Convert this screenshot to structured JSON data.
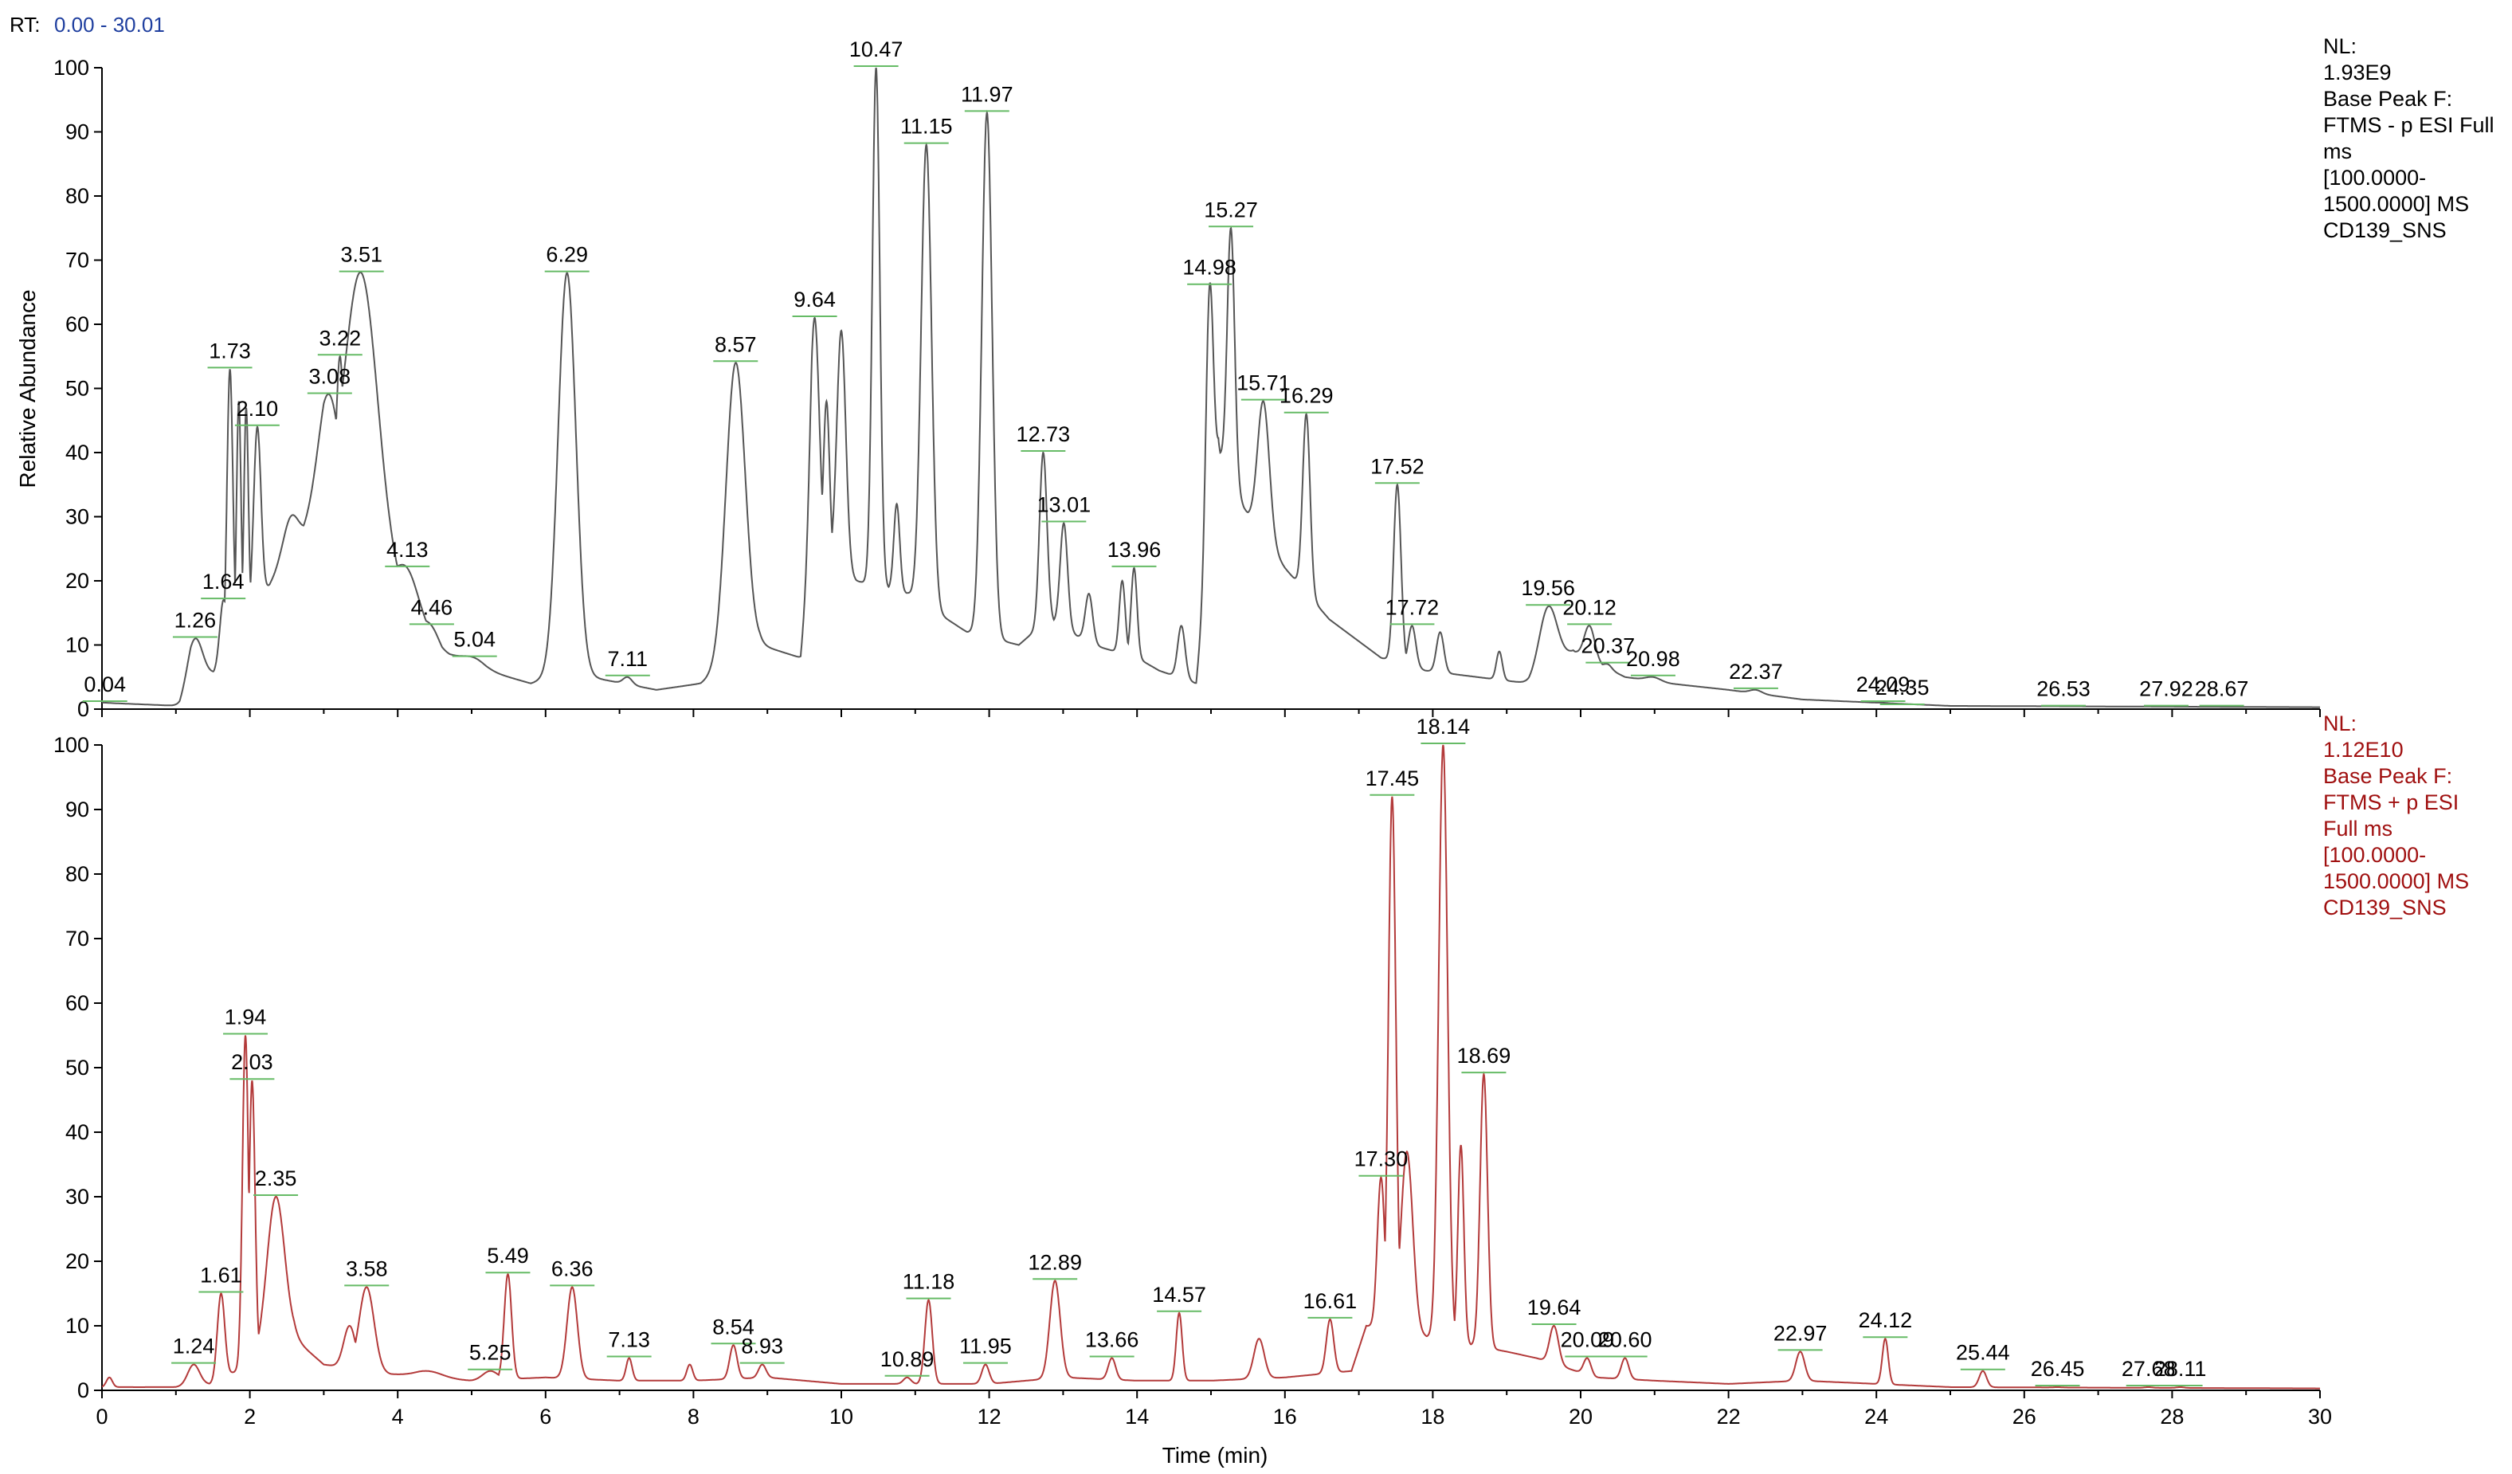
{
  "header": {
    "rt_label": "RT:",
    "rt_range": "0.00 - 30.01"
  },
  "colors": {
    "panel_1": "#555555",
    "panel_2": "#b33a3a",
    "panel_2_text": "#a01010",
    "rt_range_text": "#1f3f9f",
    "label_tick": "#66bb66"
  },
  "chart_data": [
    {
      "type": "line",
      "xlabel": "Time (min)",
      "ylabel": "Relative Abundance",
      "xlim": [
        0,
        30
      ],
      "ylim": [
        0,
        100
      ],
      "x_ticks": [
        0,
        2,
        4,
        6,
        8,
        10,
        12,
        14,
        16,
        18,
        20,
        22,
        24,
        26,
        28,
        30
      ],
      "y_ticks": [
        0,
        10,
        20,
        30,
        40,
        50,
        60,
        70,
        80,
        90,
        100
      ],
      "info": [
        "NL:",
        "1.93E9",
        "Base Peak F:",
        "FTMS - p ESI Full",
        "ms",
        "[100.0000-",
        "1500.0000]  MS",
        "CD139_SNS"
      ],
      "peaks": [
        {
          "label": "0.04",
          "x": 0.04,
          "y": 1,
          "w": 0.05
        },
        {
          "label": "1.26",
          "x": 1.26,
          "y": 11,
          "w": 0.1
        },
        {
          "label": "1.64",
          "x": 1.64,
          "y": 17,
          "w": 0.05
        },
        {
          "label": "1.73",
          "x": 1.73,
          "y": 53,
          "w": 0.04
        },
        {
          "label": "",
          "x": 1.85,
          "y": 48,
          "w": 0.03
        },
        {
          "label": "",
          "x": 1.95,
          "y": 47,
          "w": 0.03
        },
        {
          "label": "2.10",
          "x": 2.1,
          "y": 44,
          "w": 0.05
        },
        {
          "label": "",
          "x": 2.55,
          "y": 30,
          "w": 0.1
        },
        {
          "label": "3.08",
          "x": 3.08,
          "y": 49,
          "w": 0.15
        },
        {
          "label": "3.22",
          "x": 3.22,
          "y": 55,
          "w": 0.05
        },
        {
          "label": "3.51",
          "x": 3.51,
          "y": 68,
          "w": 0.22
        },
        {
          "label": "4.13",
          "x": 4.13,
          "y": 22,
          "w": 0.15
        },
        {
          "label": "4.46",
          "x": 4.46,
          "y": 13,
          "w": 0.1
        },
        {
          "label": "5.04",
          "x": 5.04,
          "y": 8,
          "w": 0.15
        },
        {
          "label": "6.29",
          "x": 6.29,
          "y": 68,
          "w": 0.12
        },
        {
          "label": "7.11",
          "x": 7.11,
          "y": 5,
          "w": 0.06
        },
        {
          "label": "8.57",
          "x": 8.57,
          "y": 54,
          "w": 0.13
        },
        {
          "label": "9.64",
          "x": 9.64,
          "y": 61,
          "w": 0.06
        },
        {
          "label": "",
          "x": 9.8,
          "y": 48,
          "w": 0.04
        },
        {
          "label": "",
          "x": 10.0,
          "y": 59,
          "w": 0.06
        },
        {
          "label": "10.47",
          "x": 10.47,
          "y": 100,
          "w": 0.05
        },
        {
          "label": "",
          "x": 10.75,
          "y": 32,
          "w": 0.04
        },
        {
          "label": "11.15",
          "x": 11.15,
          "y": 88,
          "w": 0.07
        },
        {
          "label": "11.97",
          "x": 11.97,
          "y": 93,
          "w": 0.07
        },
        {
          "label": "12.73",
          "x": 12.73,
          "y": 40,
          "w": 0.05
        },
        {
          "label": "13.01",
          "x": 13.01,
          "y": 29,
          "w": 0.05
        },
        {
          "label": "",
          "x": 13.35,
          "y": 18,
          "w": 0.05
        },
        {
          "label": "",
          "x": 13.8,
          "y": 20,
          "w": 0.04
        },
        {
          "label": "13.96",
          "x": 13.96,
          "y": 22,
          "w": 0.04
        },
        {
          "label": "",
          "x": 14.6,
          "y": 13,
          "w": 0.05
        },
        {
          "label": "14.98",
          "x": 14.98,
          "y": 66,
          "w": 0.05
        },
        {
          "label": "15.27",
          "x": 15.27,
          "y": 75,
          "w": 0.05
        },
        {
          "label": "15.71",
          "x": 15.71,
          "y": 48,
          "w": 0.08
        },
        {
          "label": "16.29",
          "x": 16.29,
          "y": 46,
          "w": 0.05
        },
        {
          "label": "17.52",
          "x": 17.52,
          "y": 35,
          "w": 0.05
        },
        {
          "label": "17.72",
          "x": 17.72,
          "y": 13,
          "w": 0.05
        },
        {
          "label": "",
          "x": 18.1,
          "y": 12,
          "w": 0.05
        },
        {
          "label": "",
          "x": 18.9,
          "y": 9,
          "w": 0.04
        },
        {
          "label": "19.56",
          "x": 19.56,
          "y": 16,
          "w": 0.12
        },
        {
          "label": "20.12",
          "x": 20.12,
          "y": 13,
          "w": 0.07
        },
        {
          "label": "20.37",
          "x": 20.37,
          "y": 7,
          "w": 0.05
        },
        {
          "label": "20.98",
          "x": 20.98,
          "y": 5,
          "w": 0.1
        },
        {
          "label": "22.37",
          "x": 22.37,
          "y": 3,
          "w": 0.08
        },
        {
          "label": "24.09",
          "x": 24.09,
          "y": 1,
          "w": 0.05
        },
        {
          "label": "24.35",
          "x": 24.35,
          "y": 0.5,
          "w": 0.05
        },
        {
          "label": "26.53",
          "x": 26.53,
          "y": 0.3,
          "w": 0.05
        },
        {
          "label": "27.92",
          "x": 27.92,
          "y": 0.3,
          "w": 0.05
        },
        {
          "label": "28.67",
          "x": 28.67,
          "y": 0.3,
          "w": 0.05
        }
      ],
      "baseline": [
        [
          0,
          1
        ],
        [
          1.05,
          0.5
        ],
        [
          1.2,
          4
        ],
        [
          1.6,
          6
        ],
        [
          2.4,
          22
        ],
        [
          3.0,
          32
        ],
        [
          3.9,
          20
        ],
        [
          4.6,
          9
        ],
        [
          5.2,
          6
        ],
        [
          5.8,
          4
        ],
        [
          6.1,
          5
        ],
        [
          6.6,
          5
        ],
        [
          7.5,
          3
        ],
        [
          8.1,
          4
        ],
        [
          8.9,
          10
        ],
        [
          9.45,
          8
        ],
        [
          9.6,
          26
        ],
        [
          10.2,
          20
        ],
        [
          10.9,
          18
        ],
        [
          11.7,
          12
        ],
        [
          12.4,
          10
        ],
        [
          12.8,
          14
        ],
        [
          13.4,
          10
        ],
        [
          14.0,
          8
        ],
        [
          14.3,
          6
        ],
        [
          14.8,
          4
        ],
        [
          15.1,
          40
        ],
        [
          15.5,
          30
        ],
        [
          16.0,
          22
        ],
        [
          16.6,
          14
        ],
        [
          17.3,
          8
        ],
        [
          17.9,
          6
        ],
        [
          18.6,
          5
        ],
        [
          19.3,
          4
        ],
        [
          19.9,
          9
        ],
        [
          20.6,
          5
        ],
        [
          21.2,
          4
        ],
        [
          22.0,
          3
        ],
        [
          23.0,
          1.5
        ],
        [
          24.0,
          1
        ],
        [
          25.0,
          0.5
        ],
        [
          30.0,
          0.3
        ]
      ]
    },
    {
      "type": "line",
      "xlabel": "Time (min)",
      "ylabel": "Relative Abundance",
      "xlim": [
        0,
        30
      ],
      "ylim": [
        0,
        100
      ],
      "x_ticks": [
        0,
        2,
        4,
        6,
        8,
        10,
        12,
        14,
        16,
        18,
        20,
        22,
        24,
        26,
        28,
        30
      ],
      "y_ticks": [
        0,
        10,
        20,
        30,
        40,
        50,
        60,
        70,
        80,
        90,
        100
      ],
      "info": [
        "NL:",
        "1.12E10",
        "Base Peak F:",
        "FTMS + p ESI",
        "Full ms",
        "[100.0000-",
        "1500.0000]  MS",
        "CD139_SNS"
      ],
      "peaks": [
        {
          "label": "",
          "x": 0.1,
          "y": 2,
          "w": 0.04
        },
        {
          "label": "1.24",
          "x": 1.24,
          "y": 4,
          "w": 0.08
        },
        {
          "label": "1.61",
          "x": 1.61,
          "y": 15,
          "w": 0.05
        },
        {
          "label": "1.94",
          "x": 1.94,
          "y": 55,
          "w": 0.04
        },
        {
          "label": "2.03",
          "x": 2.03,
          "y": 48,
          "w": 0.04
        },
        {
          "label": "2.35",
          "x": 2.35,
          "y": 30,
          "w": 0.12
        },
        {
          "label": "",
          "x": 3.35,
          "y": 10,
          "w": 0.08
        },
        {
          "label": "3.58",
          "x": 3.58,
          "y": 16,
          "w": 0.1
        },
        {
          "label": "",
          "x": 4.4,
          "y": 3,
          "w": 0.2
        },
        {
          "label": "5.25",
          "x": 5.25,
          "y": 3,
          "w": 0.1
        },
        {
          "label": "5.49",
          "x": 5.49,
          "y": 18,
          "w": 0.05
        },
        {
          "label": "6.36",
          "x": 6.36,
          "y": 16,
          "w": 0.07
        },
        {
          "label": "7.13",
          "x": 7.13,
          "y": 5,
          "w": 0.04
        },
        {
          "label": "",
          "x": 7.95,
          "y": 4,
          "w": 0.04
        },
        {
          "label": "8.54",
          "x": 8.54,
          "y": 7,
          "w": 0.05
        },
        {
          "label": "8.93",
          "x": 8.93,
          "y": 4,
          "w": 0.05
        },
        {
          "label": "10.89",
          "x": 10.89,
          "y": 2,
          "w": 0.05
        },
        {
          "label": "11.18",
          "x": 11.18,
          "y": 14,
          "w": 0.05
        },
        {
          "label": "11.95",
          "x": 11.95,
          "y": 4,
          "w": 0.05
        },
        {
          "label": "12.89",
          "x": 12.89,
          "y": 17,
          "w": 0.07
        },
        {
          "label": "13.66",
          "x": 13.66,
          "y": 5,
          "w": 0.05
        },
        {
          "label": "14.57",
          "x": 14.57,
          "y": 12,
          "w": 0.04
        },
        {
          "label": "",
          "x": 15.65,
          "y": 8,
          "w": 0.07
        },
        {
          "label": "16.61",
          "x": 16.61,
          "y": 11,
          "w": 0.05
        },
        {
          "label": "17.30",
          "x": 17.3,
          "y": 33,
          "w": 0.05
        },
        {
          "label": "17.45",
          "x": 17.45,
          "y": 92,
          "w": 0.05
        },
        {
          "label": "",
          "x": 17.65,
          "y": 37,
          "w": 0.08
        },
        {
          "label": "18.14",
          "x": 18.14,
          "y": 100,
          "w": 0.06
        },
        {
          "label": "",
          "x": 18.38,
          "y": 38,
          "w": 0.04
        },
        {
          "label": "18.69",
          "x": 18.69,
          "y": 49,
          "w": 0.05
        },
        {
          "label": "19.64",
          "x": 19.64,
          "y": 10,
          "w": 0.06
        },
        {
          "label": "20.09",
          "x": 20.09,
          "y": 5,
          "w": 0.05
        },
        {
          "label": "20.60",
          "x": 20.6,
          "y": 5,
          "w": 0.05
        },
        {
          "label": "22.97",
          "x": 22.97,
          "y": 6,
          "w": 0.06
        },
        {
          "label": "24.12",
          "x": 24.12,
          "y": 8,
          "w": 0.04
        },
        {
          "label": "25.44",
          "x": 25.44,
          "y": 3,
          "w": 0.05
        },
        {
          "label": "26.45",
          "x": 26.45,
          "y": 0.5,
          "w": 0.05
        },
        {
          "label": "27.68",
          "x": 27.68,
          "y": 0.5,
          "w": 0.05
        },
        {
          "label": "28.11",
          "x": 28.11,
          "y": 0.5,
          "w": 0.05
        }
      ],
      "baseline": [
        [
          0,
          0.5
        ],
        [
          1.0,
          0.5
        ],
        [
          1.5,
          1
        ],
        [
          2.6,
          8
        ],
        [
          3.0,
          4
        ],
        [
          4.2,
          2
        ],
        [
          5.0,
          1.5
        ],
        [
          6.0,
          2
        ],
        [
          7.0,
          1.5
        ],
        [
          8.0,
          1.5
        ],
        [
          9.0,
          2
        ],
        [
          10.0,
          1
        ],
        [
          11.0,
          1
        ],
        [
          12.0,
          1
        ],
        [
          13.0,
          2
        ],
        [
          14.0,
          1.5
        ],
        [
          15.0,
          1.5
        ],
        [
          16.0,
          2
        ],
        [
          16.9,
          3
        ],
        [
          17.1,
          10
        ],
        [
          19.0,
          6
        ],
        [
          19.4,
          5
        ],
        [
          20.2,
          2
        ],
        [
          21.0,
          1.5
        ],
        [
          22.0,
          1
        ],
        [
          23.0,
          1.5
        ],
        [
          24.0,
          1
        ],
        [
          25.0,
          0.5
        ],
        [
          30.0,
          0.3
        ]
      ]
    }
  ]
}
